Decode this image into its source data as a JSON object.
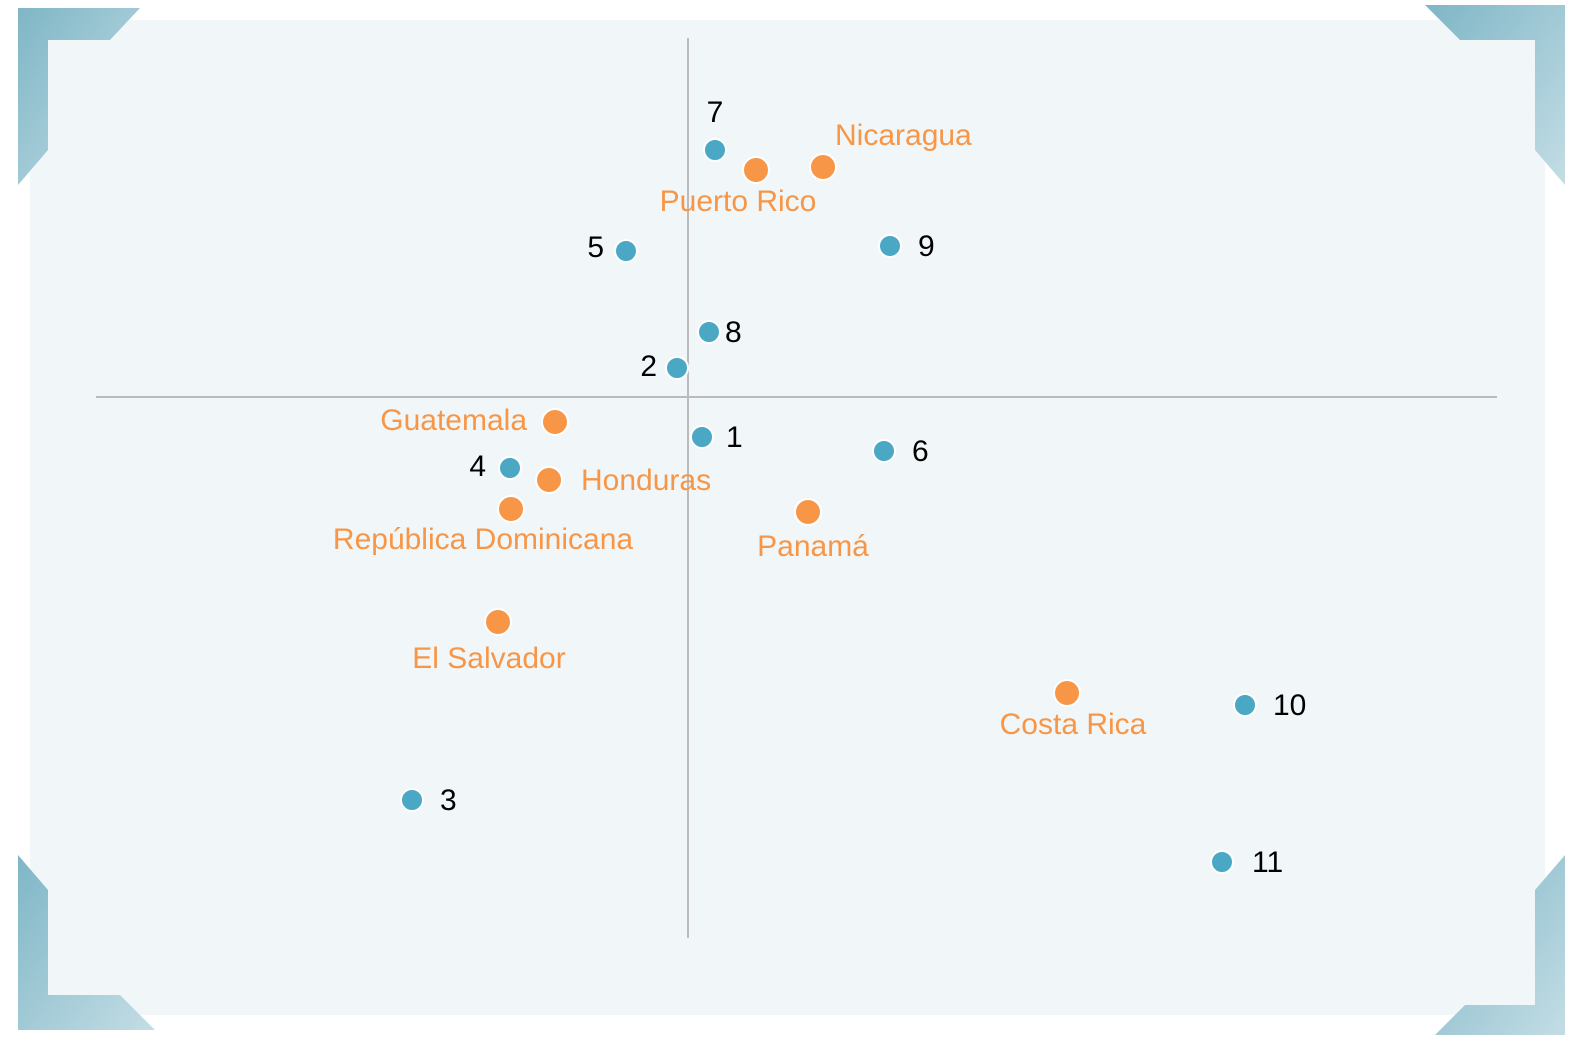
{
  "chart_data": {
    "type": "scatter",
    "xlim": [
      -5.92,
      8.09
    ],
    "ylim": [
      -5.41,
      3.59
    ],
    "series": [
      {
        "color": "#4aa8c4",
        "labels": [
          "1",
          "2",
          "3",
          "4",
          "5",
          "6",
          "7",
          "8",
          "9",
          "10",
          "11"
        ],
        "x": [
          0.14,
          -0.11,
          -2.76,
          -1.78,
          -0.62,
          1.96,
          0.27,
          0.21,
          2.02,
          5.57,
          5.34
        ],
        "y": [
          -0.4,
          0.29,
          -4.03,
          -0.71,
          1.46,
          -0.54,
          2.47,
          0.65,
          1.51,
          -3.08,
          -4.65
        ]
      },
      {
        "color": "#f79646",
        "labels": [
          "Nicaragua",
          "Puerto Rico",
          "Guatemala",
          "Honduras",
          "República Dominicana",
          "Panamá",
          "El Salvador",
          "Costa Rica"
        ],
        "x": [
          1.35,
          0.68,
          -1.33,
          -1.39,
          -1.77,
          1.2,
          -1.9,
          3.79
        ],
        "y": [
          2.3,
          2.27,
          -0.25,
          -0.83,
          -1.12,
          -1.15,
          -2.25,
          -2.96
        ]
      }
    ]
  }
}
